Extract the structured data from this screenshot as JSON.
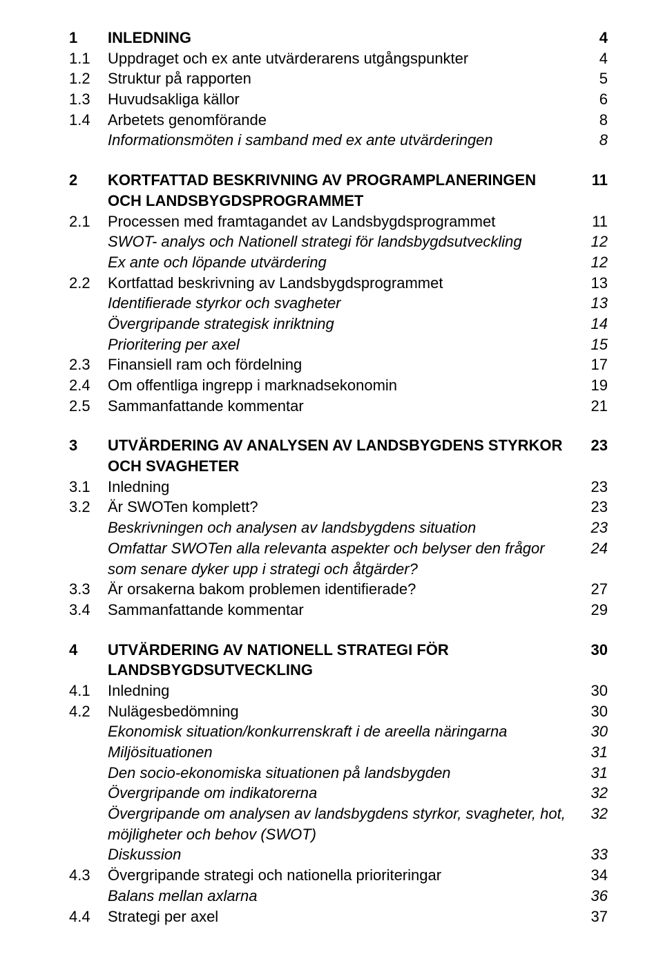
{
  "toc": [
    {
      "type": "h1",
      "num": "1",
      "text": "INLEDNING",
      "page": "4"
    },
    {
      "type": "n",
      "num": "1.1",
      "text": "Uppdraget och ex ante utvärderarens utgångspunkter",
      "page": "4"
    },
    {
      "type": "n",
      "num": "1.2",
      "text": "Struktur på rapporten",
      "page": "5"
    },
    {
      "type": "n",
      "num": "1.3",
      "text": "Huvudsakliga källor",
      "page": "6"
    },
    {
      "type": "n",
      "num": "1.4",
      "text": "Arbetets genomförande",
      "page": "8"
    },
    {
      "type": "sub",
      "text": "Informationsmöten i samband med ex ante utvärderingen",
      "page": "8"
    },
    {
      "type": "h1",
      "gap": true,
      "num": "2",
      "text": "KORTFATTAD BESKRIVNING AV PROGRAMPLANERINGEN OCH LANDSBYGDSPROGRAMMET",
      "page": "11"
    },
    {
      "type": "n",
      "num": "2.1",
      "text": "Processen med framtagandet av Landsbygdsprogrammet",
      "page": "11"
    },
    {
      "type": "sub",
      "text": "SWOT- analys och Nationell strategi för landsbygdsutveckling",
      "page": "12"
    },
    {
      "type": "sub",
      "text": "Ex ante och löpande utvärdering",
      "page": "12"
    },
    {
      "type": "n",
      "num": "2.2",
      "text": "Kortfattad beskrivning av Landsbygdsprogrammet",
      "page": "13"
    },
    {
      "type": "sub",
      "text": "Identifierade styrkor och svagheter",
      "page": "13"
    },
    {
      "type": "sub",
      "text": "Övergripande strategisk inriktning",
      "page": "14"
    },
    {
      "type": "sub",
      "text": "Prioritering per axel",
      "page": "15"
    },
    {
      "type": "n",
      "num": "2.3",
      "text": "Finansiell ram och fördelning",
      "page": "17"
    },
    {
      "type": "n",
      "num": "2.4",
      "text": "Om offentliga ingrepp i marknadsekonomin",
      "page": "19"
    },
    {
      "type": "n",
      "num": "2.5",
      "text": "Sammanfattande kommentar",
      "page": "21"
    },
    {
      "type": "h1",
      "gap": true,
      "num": "3",
      "text": "UTVÄRDERING AV ANALYSEN AV LANDSBYGDENS STYRKOR OCH SVAGHETER",
      "page": "23"
    },
    {
      "type": "n",
      "num": "3.1",
      "text": "Inledning",
      "page": "23"
    },
    {
      "type": "n",
      "num": "3.2",
      "text": "Är SWOTen komplett?",
      "page": "23"
    },
    {
      "type": "sub",
      "text": "Beskrivningen och analysen av landsbygdens situation",
      "page": "23"
    },
    {
      "type": "sub",
      "text": "Omfattar SWOTen alla relevanta aspekter och belyser den frågor som senare dyker upp i strategi och åtgärder?",
      "page": "24"
    },
    {
      "type": "n",
      "num": "3.3",
      "text": "Är orsakerna bakom problemen identifierade?",
      "page": "27"
    },
    {
      "type": "n",
      "num": "3.4",
      "text": "Sammanfattande kommentar",
      "page": "29"
    },
    {
      "type": "h1",
      "gap": true,
      "num": "4",
      "text": "UTVÄRDERING AV NATIONELL STRATEGI FÖR LANDSBYGDSUTVECKLING",
      "page": "30"
    },
    {
      "type": "n",
      "num": "4.1",
      "text": "Inledning",
      "page": "30"
    },
    {
      "type": "n",
      "num": "4.2",
      "text": "Nulägesbedömning",
      "page": "30"
    },
    {
      "type": "sub",
      "text": "Ekonomisk situation/konkurrenskraft i de areella näringarna",
      "page": "30"
    },
    {
      "type": "sub",
      "text": "Miljösituationen",
      "page": "31"
    },
    {
      "type": "sub",
      "text": "Den socio-ekonomiska situationen på landsbygden",
      "page": "31"
    },
    {
      "type": "sub",
      "text": "Övergripande om indikatorerna",
      "page": "32"
    },
    {
      "type": "sub",
      "text": "Övergripande om analysen av landsbygdens styrkor, svagheter, hot, möjligheter och behov (SWOT)",
      "page": "32"
    },
    {
      "type": "sub",
      "text": "Diskussion",
      "page": "33"
    },
    {
      "type": "n",
      "num": "4.3",
      "text": "Övergripande strategi och nationella prioriteringar",
      "page": "34"
    },
    {
      "type": "sub",
      "text": "Balans mellan axlarna",
      "page": "36"
    },
    {
      "type": "n",
      "num": "4.4",
      "text": "Strategi per axel",
      "page": "37"
    }
  ]
}
